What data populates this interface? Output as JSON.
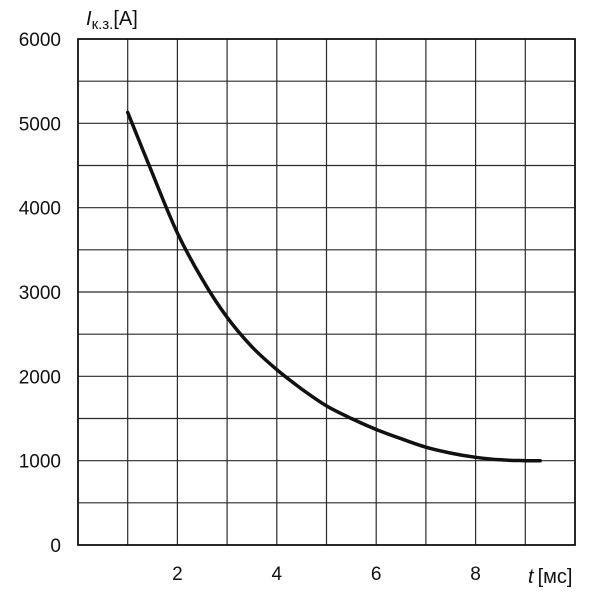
{
  "chart_data": {
    "type": "line",
    "title": "",
    "ylabel": {
      "symbol": "I",
      "subscript": "к.з.",
      "unit": "[A]"
    },
    "xlabel": {
      "symbol": "t",
      "unit": "[мс]"
    },
    "xlim": [
      0,
      10
    ],
    "ylim": [
      0,
      6000
    ],
    "x_ticks": [
      2,
      4,
      6,
      8
    ],
    "x_tick_labels": [
      "2",
      "4",
      "6",
      "8"
    ],
    "y_ticks": [
      0,
      1000,
      2000,
      3000,
      4000,
      5000,
      6000
    ],
    "y_tick_labels": [
      "0",
      "1000",
      "2000",
      "3000",
      "4000",
      "5000",
      "6000"
    ],
    "grid": true,
    "grid_x_step": 1,
    "grid_y_step": 500,
    "series": [
      {
        "x": [
          1.0,
          1.5,
          2.0,
          2.5,
          3.0,
          3.5,
          4.0,
          4.5,
          5.0,
          5.5,
          6.0,
          6.5,
          7.0,
          7.5,
          8.0,
          8.5,
          9.0,
          9.3
        ],
        "values": [
          5130,
          4400,
          3700,
          3150,
          2700,
          2350,
          2080,
          1850,
          1650,
          1500,
          1370,
          1260,
          1160,
          1090,
          1040,
          1010,
          1000,
          1000
        ]
      }
    ]
  }
}
